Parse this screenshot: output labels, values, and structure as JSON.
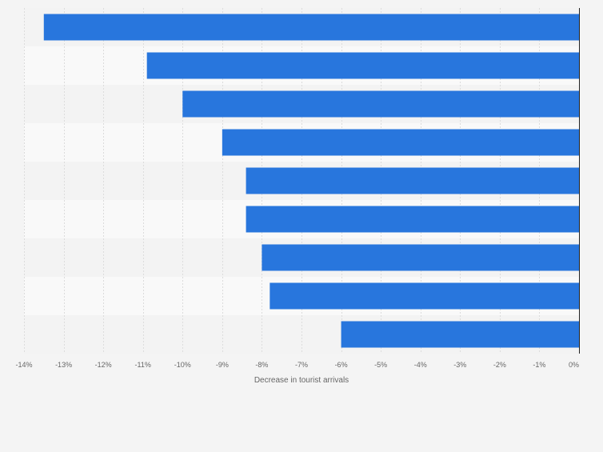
{
  "chart_data": {
    "type": "bar",
    "orientation": "horizontal",
    "categories": [
      "",
      "",
      "",
      "",
      "",
      "",
      "",
      "",
      ""
    ],
    "series": [
      {
        "values": [
          -13.5,
          -10.9,
          -10.0,
          -9.0,
          -8.4,
          -8.4,
          -8.0,
          -7.8,
          -6.0
        ]
      }
    ],
    "xlabel": "Decrease in tourist arrivals",
    "ylabel": "",
    "xlim": [
      -14,
      0
    ],
    "xticks": [
      -14,
      -13,
      -12,
      -11,
      -10,
      -9,
      -8,
      -7,
      -6,
      -5,
      -4,
      -3,
      -2,
      -1,
      0
    ],
    "tick_labels": [
      "-14%",
      "-13%",
      "-12%",
      "-11%",
      "-10%",
      "-9%",
      "-8%",
      "-7%",
      "-6%",
      "-5%",
      "-4%",
      "-3%",
      "-2%",
      "-1%",
      "0%"
    ],
    "grid": true,
    "legend": "none"
  },
  "colors": {
    "bar": "#2876dd",
    "background": "#f4f4f4",
    "plot_band_light": "#f9f9f9",
    "plot_band_dark": "#f3f3f3",
    "gridline": "#dcdcdc",
    "axis_line": "#222222",
    "tick_text": "#666666",
    "label_text": "#666666"
  }
}
